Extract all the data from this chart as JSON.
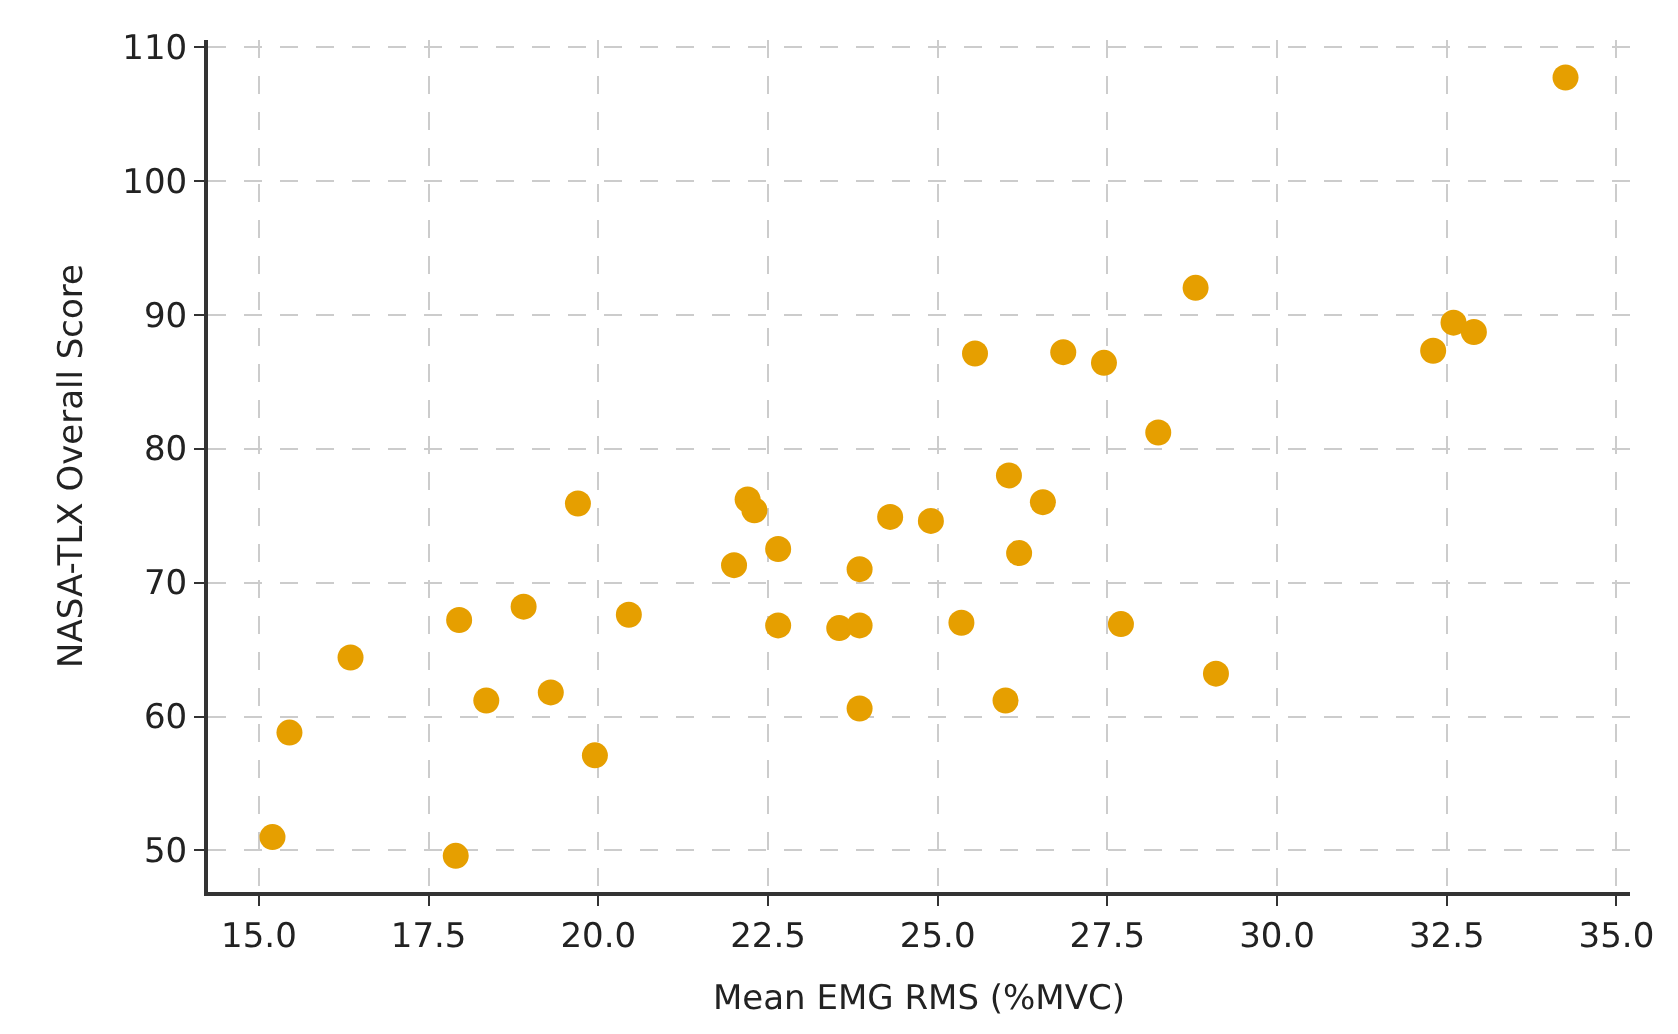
{
  "chart_data": {
    "type": "scatter",
    "xlabel": "Mean EMG RMS (%MVC)",
    "ylabel": "NASA-TLX Overall Score",
    "x": [
      15.2,
      15.45,
      16.35,
      17.9,
      17.95,
      18.35,
      18.9,
      19.3,
      19.7,
      19.95,
      20.45,
      22.0,
      22.2,
      22.3,
      22.65,
      22.65,
      23.55,
      23.85,
      23.85,
      23.85,
      24.3,
      24.9,
      25.35,
      25.55,
      26.0,
      26.05,
      26.2,
      26.55,
      26.85,
      27.45,
      27.7,
      28.25,
      28.8,
      29.1,
      32.3,
      32.6,
      32.9,
      34.25
    ],
    "series": [
      {
        "color": "#e69f00",
        "values": [
          51.0,
          58.8,
          64.4,
          49.6,
          67.2,
          61.2,
          68.2,
          61.8,
          75.9,
          57.1,
          67.6,
          71.3,
          76.2,
          75.4,
          72.5,
          66.8,
          66.6,
          66.8,
          60.6,
          71.0,
          74.9,
          74.6,
          67.0,
          87.1,
          61.2,
          78.0,
          72.2,
          76.0,
          87.2,
          86.4,
          66.9,
          81.2,
          92.0,
          63.2,
          87.3,
          89.4,
          88.7,
          107.7
        ]
      }
    ],
    "xlim": [
      14.25,
      35.2
    ],
    "xticks": [
      {
        "value": 15,
        "label": "15.0"
      },
      {
        "value": 17.5,
        "label": "17.5"
      },
      {
        "value": 20,
        "label": "20.0"
      },
      {
        "value": 22.5,
        "label": "22.5"
      },
      {
        "value": 25,
        "label": "25.0"
      },
      {
        "value": 27.5,
        "label": "27.5"
      },
      {
        "value": 30,
        "label": "30.0"
      },
      {
        "value": 32.5,
        "label": "32.5"
      },
      {
        "value": 35,
        "label": "35.0"
      }
    ],
    "ylim": [
      46.9,
      110.5
    ],
    "yticks": [
      50,
      60,
      70,
      80,
      90,
      100,
      110
    ],
    "grid": true,
    "marker": "circle"
  }
}
